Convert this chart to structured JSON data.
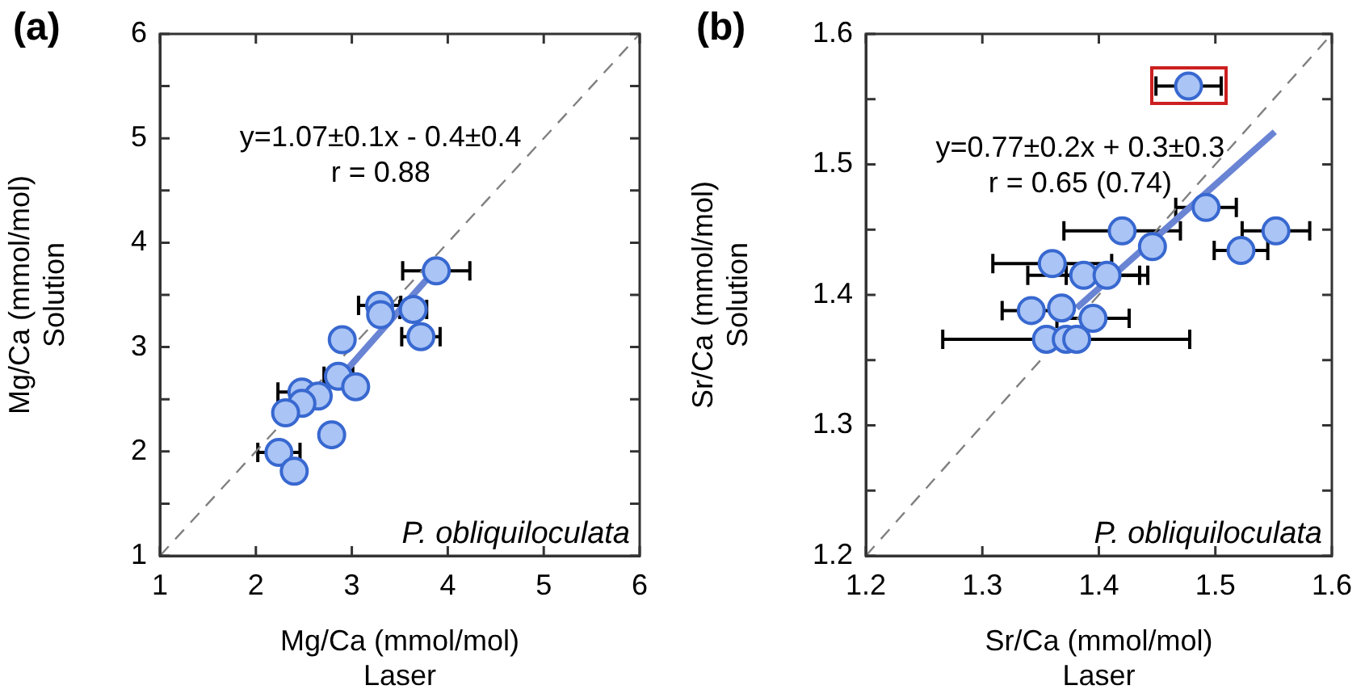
{
  "chart_data": [
    {
      "type": "scatter",
      "title": "(a)",
      "xlabel": "Mg/Ca (mmol/mol)\nLaser",
      "ylabel": "Mg/Ca (mmol/mol)\nSolution",
      "xlim": [
        1,
        6
      ],
      "xticks": [
        1,
        2,
        3,
        4,
        5,
        6
      ],
      "ylim": [
        1,
        6
      ],
      "yticks": [
        1,
        {
          "value": 1.5,
          "label": null
        },
        2,
        {
          "value": 2.5,
          "label": null
        },
        3,
        {
          "value": 3.5,
          "label": null
        },
        4,
        {
          "value": 4.5,
          "label": null
        },
        5,
        {
          "value": 5.5,
          "label": null
        },
        6
      ],
      "marker": "circle",
      "grid": false,
      "legend": false,
      "annotations": [
        "y=1.07±0.1x - 0.4±0.4",
        "r = 0.88",
        "P. obliquiloculata"
      ],
      "series": [
        {
          "type": "scatter",
          "color": "#a9c4f5",
          "x": [
            3.88,
            3.29,
            3.3,
            3.64,
            3.72,
            2.9,
            2.86,
            3.04,
            2.48,
            2.65,
            2.48,
            2.31,
            2.79,
            2.24,
            2.4
          ],
          "values": [
            3.73,
            3.4,
            3.31,
            3.36,
            3.1,
            3.07,
            2.72,
            2.62,
            2.57,
            2.53,
            2.46,
            2.37,
            2.16,
            1.99,
            1.81
          ],
          "xerrors": [
            0.35,
            0.22,
            null,
            0.14,
            0.2,
            null,
            0.15,
            null,
            0.25,
            null,
            null,
            null,
            null,
            0.22,
            null
          ]
        },
        {
          "type": "line",
          "color": "#6a84d4",
          "marker": "none",
          "x": [
            2.85,
            3.85
          ],
          "values": [
            2.68,
            3.72
          ]
        },
        {
          "type": "line",
          "color": "#808080",
          "marker": "none",
          "line_style": "dashed",
          "x": [
            1,
            6
          ],
          "values": [
            1,
            6
          ]
        }
      ]
    },
    {
      "type": "scatter",
      "title": "(b)",
      "xlabel": "Sr/Ca (mmol/mol)\nLaser",
      "ylabel": "Sr/Ca (mmol/mol)\nSolution",
      "xlim": [
        1.2,
        1.6
      ],
      "xticks": [
        1.2,
        1.3,
        1.4,
        1.5,
        1.6
      ],
      "ylim": [
        1.2,
        1.6
      ],
      "yticks": [
        1.2,
        {
          "value": 1.25,
          "label": null
        },
        1.3,
        {
          "value": 1.35,
          "label": null
        },
        1.4,
        {
          "value": 1.45,
          "label": null
        },
        1.5,
        {
          "value": 1.55,
          "label": null
        },
        1.6
      ],
      "marker": "circle",
      "grid": false,
      "legend": false,
      "annotations": [
        "y=0.77±0.2x + 0.3±0.3",
        "r = 0.65 (0.74)",
        "P. obliquiloculata"
      ],
      "series": [
        {
          "type": "scatter",
          "color": "#a9c4f5",
          "x": [
            1.492,
            1.552,
            1.522,
            1.42,
            1.446,
            1.36,
            1.387,
            1.407,
            1.342,
            1.368,
            1.395,
            1.355,
            1.372,
            1.381
          ],
          "values": [
            1.467,
            1.449,
            1.434,
            1.449,
            1.437,
            1.424,
            1.415,
            1.415,
            1.388,
            1.39,
            1.382,
            1.366,
            1.366,
            1.366
          ],
          "xerrors": [
            0.026,
            0.029,
            0.023,
            0.05,
            null,
            0.051,
            0.048,
            0.035,
            0.025,
            null,
            0.031,
            null,
            0.106,
            null
          ]
        },
        {
          "type": "scatter",
          "color": "#a9c4f5",
          "x": [
            1.477
          ],
          "values": [
            1.56
          ],
          "xerrors": [
            0.028
          ]
        },
        {
          "type": "line",
          "color": "#6a84d4",
          "marker": "none",
          "x": [
            1.381,
            1.551
          ],
          "values": [
            1.39,
            1.525
          ]
        },
        {
          "type": "line",
          "color": "#808080",
          "marker": "none",
          "line_style": "dashed",
          "x": [
            1.2,
            1.6
          ],
          "values": [
            1.2,
            1.6
          ]
        }
      ]
    }
  ]
}
